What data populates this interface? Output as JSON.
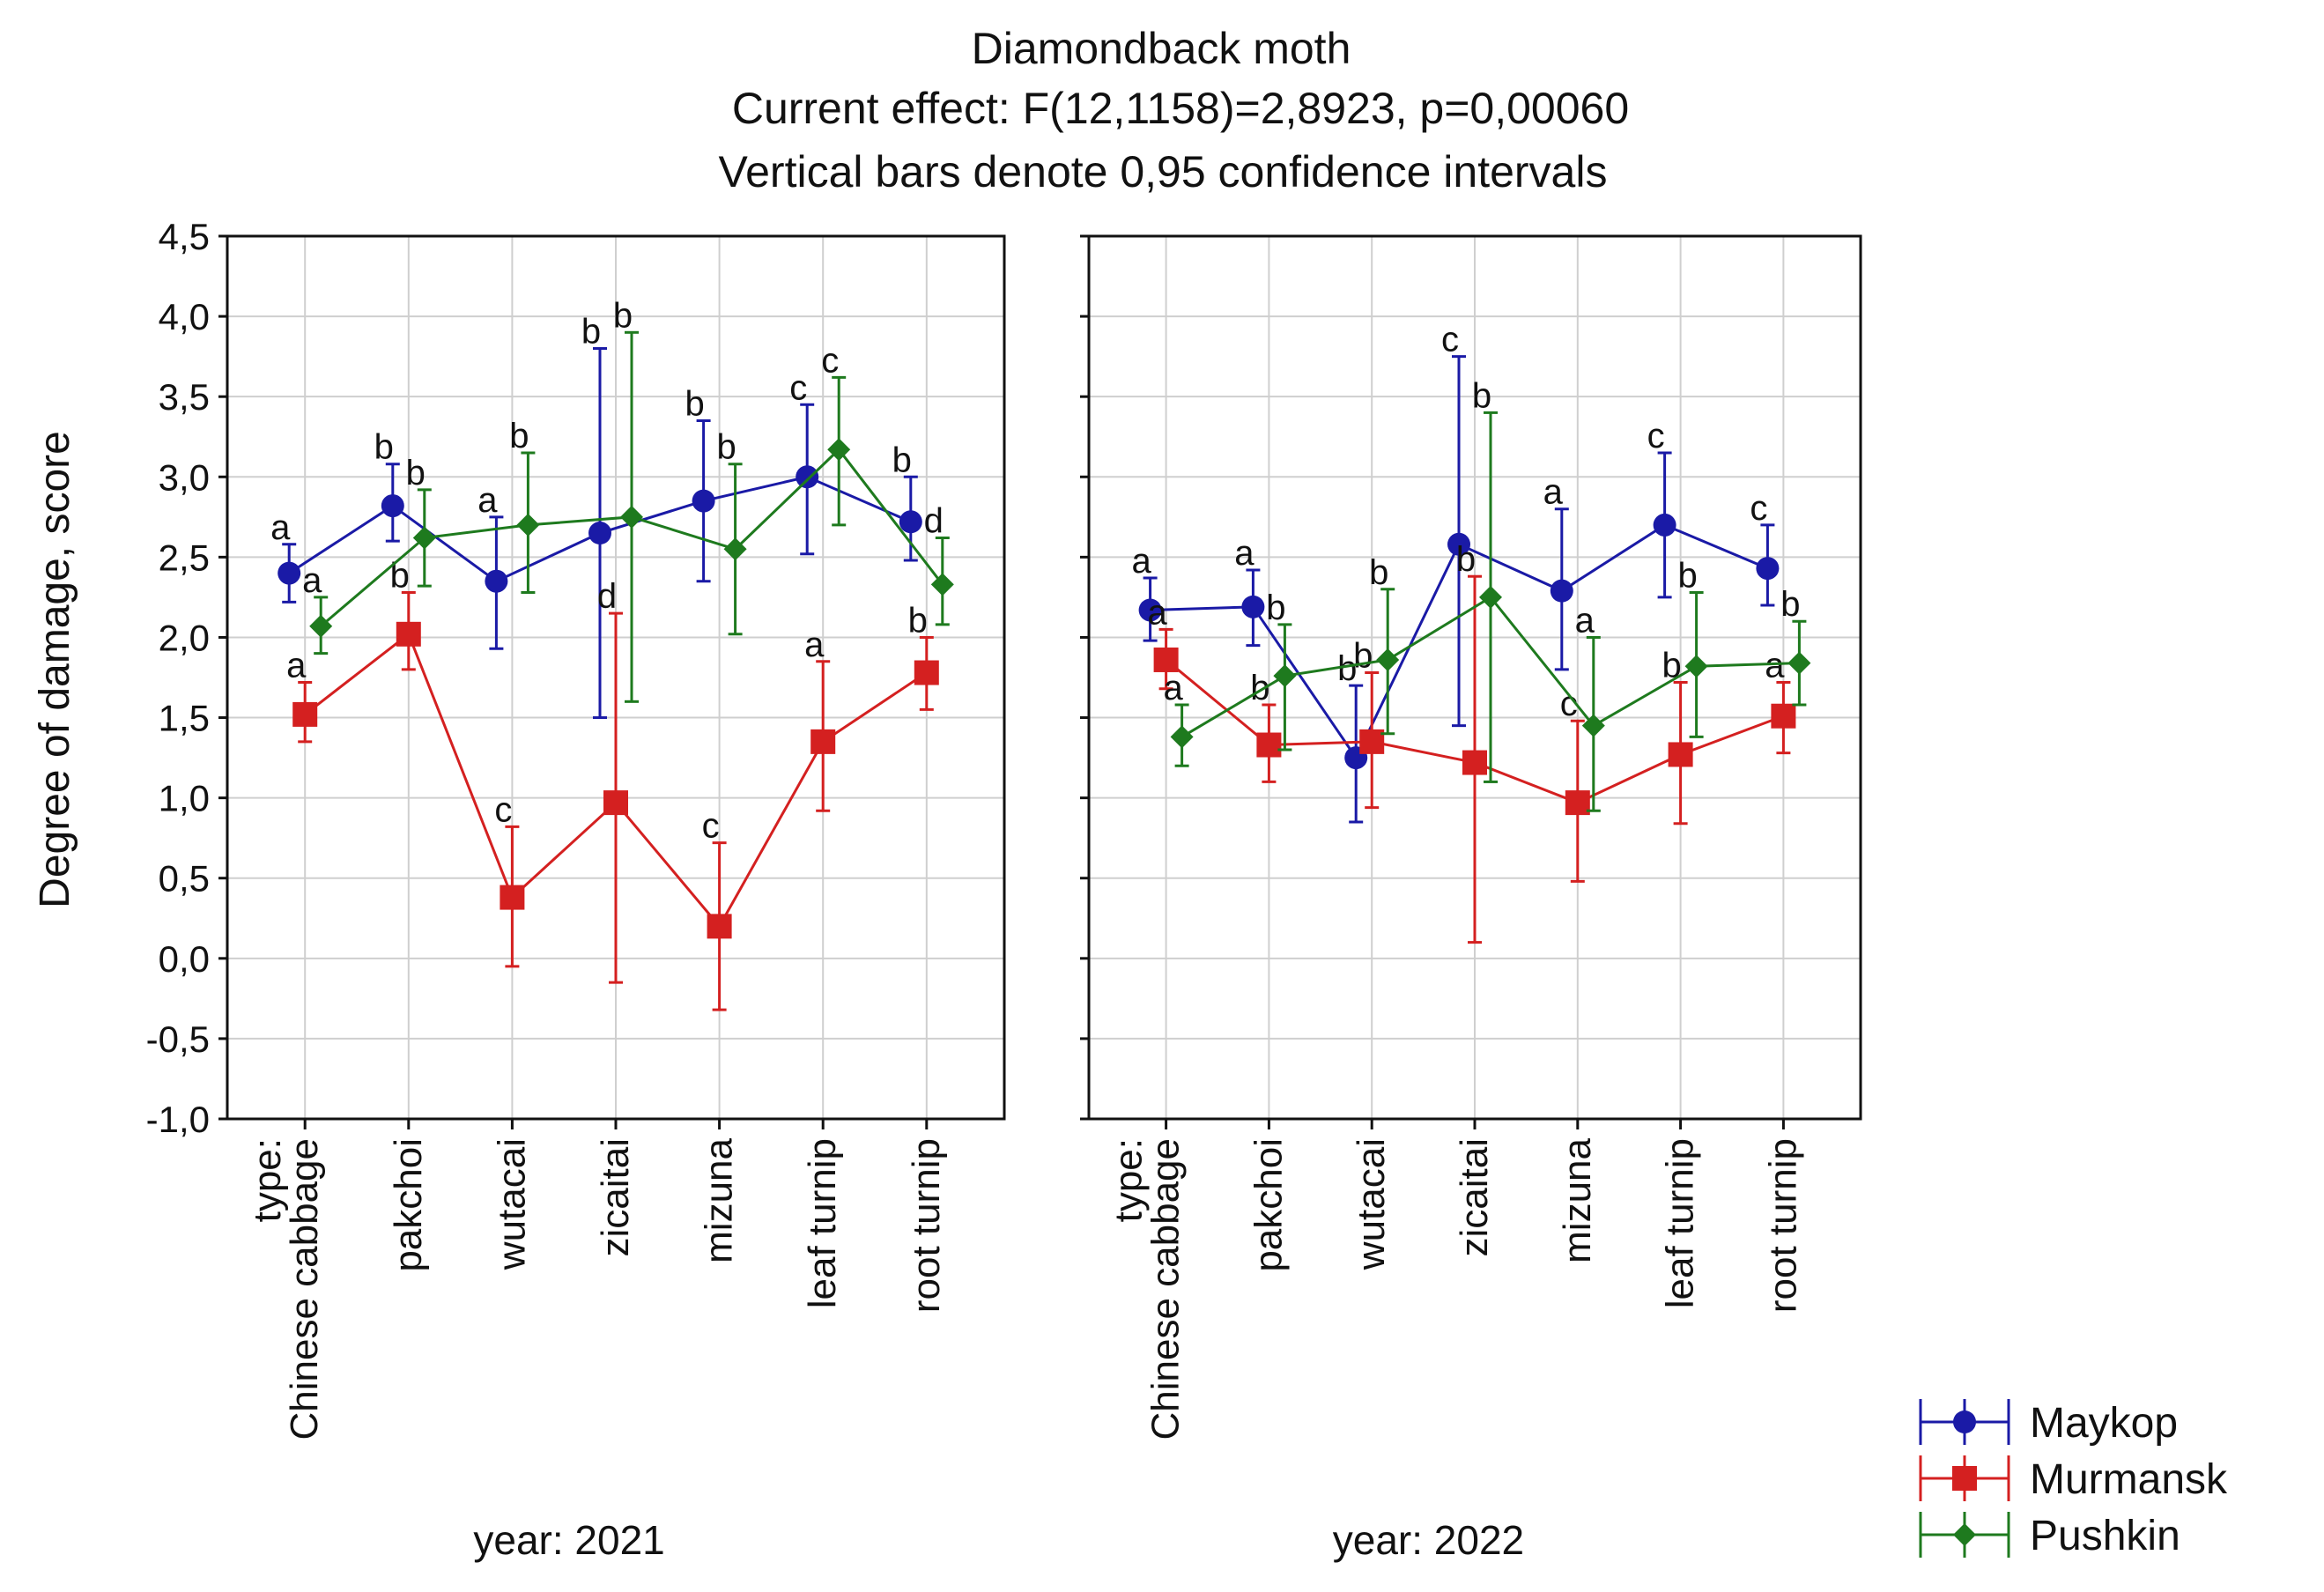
{
  "chart_data": {
    "type": "line",
    "title": "Diamondback moth",
    "subtitle_lines": [
      "Current effect: F(12,1158)=2,8923, p=0,00060",
      "Vertical bars denote 0,95 confidence intervals"
    ],
    "ylabel": "Degree of damage, score",
    "ylim": [
      -1.0,
      4.5
    ],
    "yticks": [
      -1.0,
      -0.5,
      0.0,
      0.5,
      1.0,
      1.5,
      2.0,
      2.5,
      3.0,
      3.5,
      4.0,
      4.5
    ],
    "ytick_labels": [
      "-1,0",
      "-0,5",
      "0,0",
      "0,5",
      "1,0",
      "1,5",
      "2,0",
      "2,5",
      "3,0",
      "3,5",
      "4,0",
      "4,5"
    ],
    "x_factor_label": "type:",
    "categories": [
      "Chinese cabbage",
      "pakchoi",
      "wutacai",
      "zicaitai",
      "mizuna",
      "leaf turnip",
      "root turnip"
    ],
    "grid": true,
    "legend_position": "bottom-right",
    "series_styles": [
      {
        "name": "Maykop",
        "color": "#1a1aa6",
        "marker": "circle"
      },
      {
        "name": "Murmansk",
        "color": "#d42020",
        "marker": "square"
      },
      {
        "name": "Pushkin",
        "color": "#1e7a1e",
        "marker": "diamond"
      }
    ],
    "panels": [
      {
        "label": "year: 2021",
        "series": [
          {
            "name": "Maykop",
            "values": [
              2.4,
              2.82,
              2.35,
              2.65,
              2.85,
              3.0,
              2.72
            ],
            "ci_low": [
              2.22,
              2.6,
              1.93,
              1.5,
              2.35,
              2.52,
              2.48
            ],
            "ci_high": [
              2.58,
              3.08,
              2.75,
              3.8,
              3.35,
              3.45,
              3.0
            ],
            "letters": [
              "a",
              "b",
              "a",
              "b",
              "b",
              "c",
              "b"
            ]
          },
          {
            "name": "Murmansk",
            "values": [
              1.52,
              2.02,
              0.38,
              0.97,
              0.2,
              1.35,
              1.78
            ],
            "ci_low": [
              1.35,
              1.8,
              -0.05,
              -0.15,
              -0.32,
              0.92,
              1.55
            ],
            "ci_high": [
              1.72,
              2.28,
              0.82,
              2.15,
              0.72,
              1.85,
              2.0
            ],
            "letters": [
              "a",
              "b",
              "c",
              "d",
              "c",
              "a",
              "b"
            ]
          },
          {
            "name": "Pushkin",
            "values": [
              2.07,
              2.62,
              2.7,
              2.75,
              2.55,
              3.17,
              2.33
            ],
            "ci_low": [
              1.9,
              2.32,
              2.28,
              1.6,
              2.02,
              2.7,
              2.08
            ],
            "ci_high": [
              2.25,
              2.92,
              3.15,
              3.9,
              3.08,
              3.62,
              2.62
            ],
            "letters": [
              "a",
              "b",
              "b",
              "b",
              "b",
              "c",
              "d"
            ]
          }
        ]
      },
      {
        "label": "year: 2022",
        "series": [
          {
            "name": "Maykop",
            "values": [
              2.17,
              2.19,
              1.25,
              2.58,
              2.29,
              2.7,
              2.43
            ],
            "ci_low": [
              1.98,
              1.95,
              0.85,
              1.45,
              1.8,
              2.25,
              2.2
            ],
            "ci_high": [
              2.37,
              2.42,
              1.7,
              3.75,
              2.8,
              3.15,
              2.7
            ],
            "letters": [
              "a",
              "a",
              "b",
              "c",
              "a",
              "c",
              "c"
            ]
          },
          {
            "name": "Murmansk",
            "values": [
              1.86,
              1.33,
              1.35,
              1.22,
              0.97,
              1.27,
              1.51
            ],
            "ci_low": [
              1.68,
              1.1,
              0.94,
              0.1,
              0.48,
              0.84,
              1.28
            ],
            "ci_high": [
              2.05,
              1.58,
              1.78,
              2.38,
              1.48,
              1.72,
              1.72
            ],
            "letters": [
              "a",
              "b",
              "b",
              "b",
              "c",
              "b",
              "a"
            ]
          },
          {
            "name": "Pushkin",
            "values": [
              1.38,
              1.76,
              1.86,
              2.25,
              1.45,
              1.82,
              1.84
            ],
            "ci_low": [
              1.2,
              1.3,
              1.4,
              1.1,
              0.92,
              1.38,
              1.58
            ],
            "ci_high": [
              1.58,
              2.08,
              2.3,
              3.4,
              2.0,
              2.28,
              2.1
            ],
            "letters": [
              "a",
              "b",
              "b",
              "b",
              "a",
              "b",
              "b"
            ]
          }
        ]
      }
    ]
  }
}
